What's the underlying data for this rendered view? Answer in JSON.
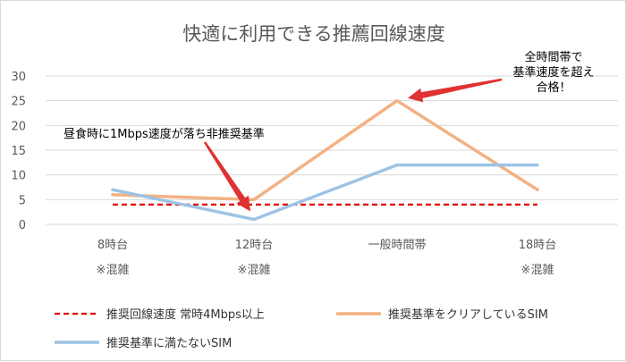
{
  "colors": {
    "threshold": "#e00000",
    "clear_sim": "#f4b183",
    "fail_sim": "#9dc3e6",
    "grid": "#d9d9d9",
    "text": "#595959",
    "arrow": "#e03232"
  },
  "chart_data": {
    "type": "line",
    "title": "快適に利用できる推薦回線速度",
    "categories": [
      "8時台",
      "12時台",
      "一般時間帯",
      "18時台"
    ],
    "category_sublabels": [
      "※混雑",
      "※混雑",
      "",
      "※混雑"
    ],
    "ylim": [
      0,
      30
    ],
    "yticks": [
      0,
      5,
      10,
      15,
      20,
      25,
      30
    ],
    "grid": true,
    "legend_position": "bottom",
    "series": [
      {
        "name": "推奨回線速度 常時4Mbps以上",
        "values": [
          4,
          4,
          4,
          4
        ],
        "color": "#e00000",
        "style": "dashed"
      },
      {
        "name": "推奨基準をクリアしているSIM",
        "values": [
          6,
          5,
          25,
          7
        ],
        "color": "#f4b183",
        "style": "solid"
      },
      {
        "name": "推奨基準に満たないSIM",
        "values": [
          7,
          1,
          12,
          12
        ],
        "color": "#9dc3e6",
        "style": "solid"
      }
    ],
    "annotations": [
      {
        "text": [
          "昼食時に1Mbps速度が落ち非推奨基準"
        ],
        "target_category": 1,
        "target_value": 1
      },
      {
        "text": [
          "全時間帯で",
          "基準速度を超え",
          "合格！"
        ],
        "target_category": 2,
        "target_value": 25
      }
    ]
  }
}
